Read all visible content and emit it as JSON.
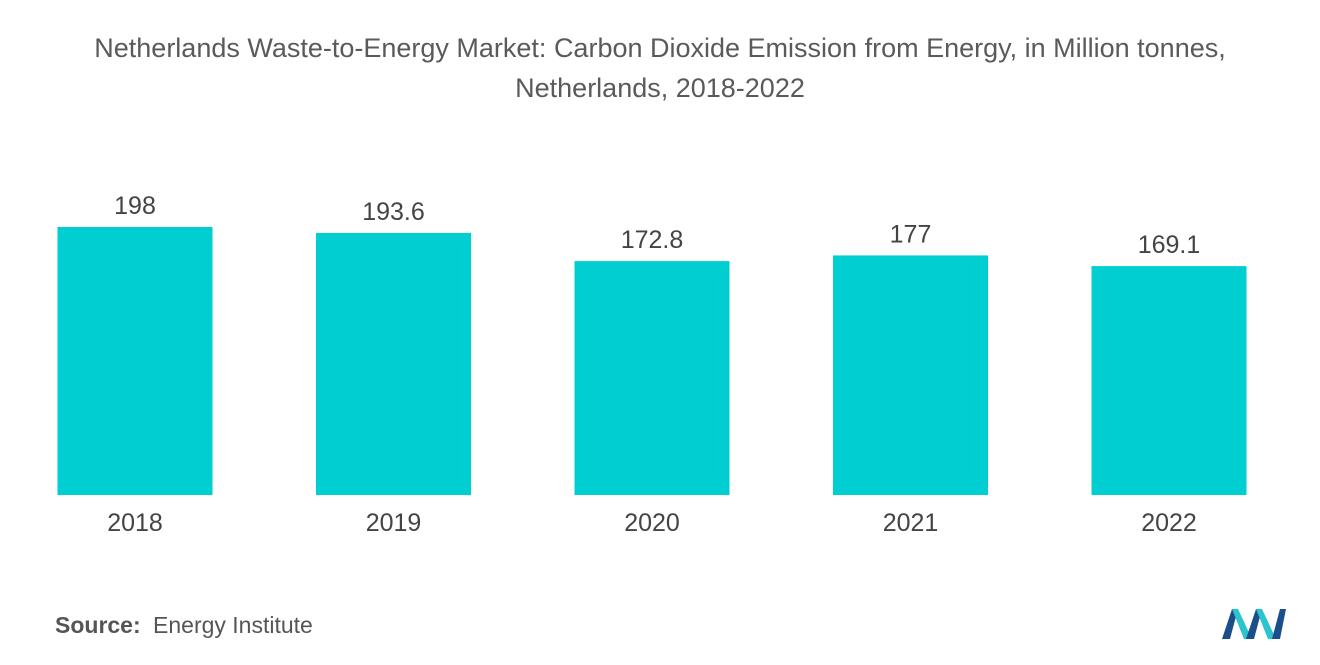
{
  "chart": {
    "title": "Netherlands Waste-to-Energy Market: Carbon Dioxide Emission from Energy, in Million tonnes, Netherlands, 2018-2022"
  },
  "chart_data": {
    "type": "bar",
    "title": "Netherlands Waste-to-Energy Market: Carbon Dioxide Emission from Energy, in Million tonnes, Netherlands, 2018-2022",
    "categories": [
      "2018",
      "2019",
      "2020",
      "2021",
      "2022"
    ],
    "values": [
      198,
      193.6,
      172.8,
      177,
      169.1
    ],
    "value_labels": [
      "198",
      "193.6",
      "172.8",
      "177",
      "169.1"
    ],
    "xlabel": "",
    "ylabel": "",
    "ylim": [
      0,
      198
    ],
    "grid": false,
    "legend": "none",
    "bar_color": "#00ced1"
  },
  "source": {
    "key": "Source:",
    "value": "Energy Institute"
  },
  "logo": {
    "icon": "mordor-intelligence-logo-icon",
    "colors": [
      "#1a4f8b",
      "#2bc4cf"
    ]
  }
}
